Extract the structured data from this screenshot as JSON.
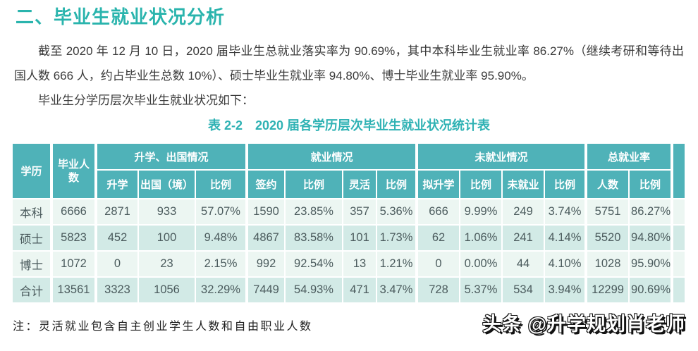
{
  "page": {
    "title": "二、毕业生就业状况分析",
    "paragraph": "截至 2020 年 12 月 10 日，2020 届毕业生总就业落实率为 90.69%，其中本科毕业生就业率 86.27%（继续考研和等待出国人数 666 人，约占毕业生总数 10%）、硕士毕业生就业率 94.80%、博士毕业生就业率 95.90%。",
    "subline": "毕业生分学历层次毕业生就业状况如下：",
    "table_caption": "表 2-2　2020 届各学历层次毕业生就业状况统计表",
    "footnote": "注：灵活就业包含自主创业学生人数和自由职业人数",
    "watermark": "头条 @升学规划肖老师"
  },
  "colors": {
    "accent_teal": "#2ab4ad",
    "caption_teal": "#2fb2b4",
    "table_header_bg": "#4fb2b8",
    "row_light": "#ecf6f2",
    "row_dark": "#d2eae6"
  },
  "table": {
    "group_headers": [
      {
        "label": "学历",
        "rowspan": 2
      },
      {
        "label": "毕业人数",
        "rowspan": 2
      },
      {
        "label": "升学、出国情况",
        "colspan": 3
      },
      {
        "label": "就业情况",
        "colspan": 4
      },
      {
        "label": "未就业情况",
        "colspan": 4
      },
      {
        "label": "总就业率",
        "colspan": 2
      }
    ],
    "sub_headers": [
      "升学",
      "出国（境）",
      "比例",
      "签约",
      "比例",
      "灵活",
      "比例",
      "拟升学",
      "比例",
      "未就业",
      "比例",
      "人数",
      "比例"
    ],
    "rows": [
      [
        "本科",
        "6666",
        "2871",
        "933",
        "57.07%",
        "1590",
        "23.85%",
        "357",
        "5.36%",
        "666",
        "9.99%",
        "249",
        "3.74%",
        "5751",
        "86.27%"
      ],
      [
        "硕士",
        "5823",
        "452",
        "100",
        "9.48%",
        "4867",
        "83.58%",
        "101",
        "1.73%",
        "62",
        "1.06%",
        "241",
        "4.14%",
        "5520",
        "94.80%"
      ],
      [
        "博士",
        "1072",
        "0",
        "23",
        "2.15%",
        "992",
        "92.54%",
        "13",
        "1.21%",
        "0",
        "0.00%",
        "44",
        "4.10%",
        "1028",
        "95.90%"
      ],
      [
        "合计",
        "13561",
        "3323",
        "1056",
        "32.29%",
        "7449",
        "54.93%",
        "471",
        "3.47%",
        "728",
        "5.37%",
        "534",
        "3.94%",
        "12299",
        "90.69%"
      ]
    ]
  }
}
